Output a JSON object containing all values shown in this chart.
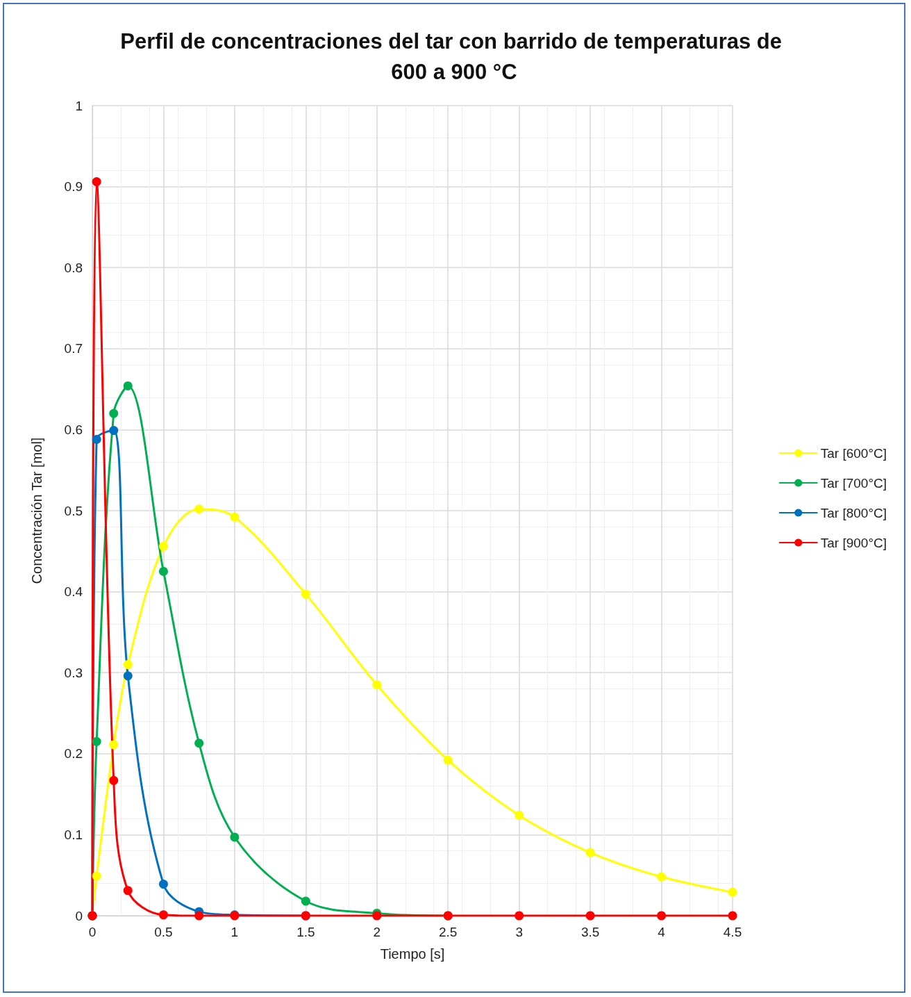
{
  "chart_data": {
    "type": "line",
    "title": "Perfil de concentraciones del tar con barrido de temperaturas de 600 a 900 °C",
    "xlabel": "Tiempo [s]",
    "ylabel": "Concentración Tar [mol]",
    "x": [
      0,
      0.03,
      0.15,
      0.25,
      0.5,
      0.75,
      1,
      1.5,
      2,
      2.5,
      3,
      3.5,
      4,
      4.5
    ],
    "series": [
      {
        "name": "Tar [600°C]",
        "color": "#ffff00",
        "values": [
          0,
          0.049,
          0.211,
          0.31,
          0.456,
          0.502,
          0.492,
          0.397,
          0.285,
          0.192,
          0.124,
          0.078,
          0.048,
          0.029
        ]
      },
      {
        "name": "Tar [700°C]",
        "color": "#00b050",
        "values": [
          0,
          0.215,
          0.62,
          0.654,
          0.425,
          0.213,
          0.097,
          0.018,
          0.003,
          0,
          null,
          null,
          null,
          null
        ]
      },
      {
        "name": "Tar [800°C]",
        "color": "#0070c0",
        "values": [
          0,
          0.588,
          0.599,
          0.296,
          0.039,
          0.005,
          0.001,
          0,
          null,
          null,
          null,
          null,
          null,
          null
        ]
      },
      {
        "name": "Tar [900°C]",
        "color": "#ff0000",
        "values": [
          0,
          0.906,
          0.167,
          0.031,
          0.001,
          0,
          0,
          0,
          0,
          0,
          0,
          0,
          0,
          0
        ]
      }
    ],
    "xlim": [
      0,
      4.5
    ],
    "xticks": [
      0,
      0.5,
      1,
      1.5,
      2,
      2.5,
      3,
      3.5,
      4,
      4.5
    ],
    "ylim": [
      0,
      1
    ],
    "yticks": [
      0,
      0.1,
      0.2,
      0.3,
      0.4,
      0.5,
      0.6,
      0.7,
      0.8,
      0.9,
      1
    ],
    "grid": true,
    "legend": "right",
    "marker": "circle",
    "line_style": "solid"
  }
}
